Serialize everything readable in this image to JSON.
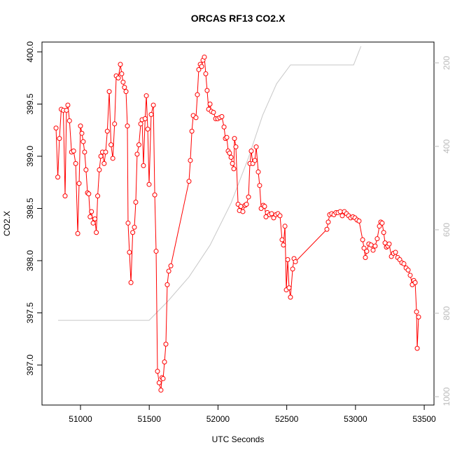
{
  "chart_data": {
    "type": "line",
    "title": "ORCAS RF13 CO2.X",
    "x_label": "UTC Seconds",
    "y_label": "CO2.X",
    "xlim": [
      50720,
      53571
    ],
    "xticks": [
      51000,
      51500,
      52000,
      52500,
      53000,
      53500
    ],
    "ylim": [
      396.617,
      400.094
    ],
    "yticks": [
      {
        "value": 397,
        "label": "397.0"
      },
      397.5,
      {
        "value": 398,
        "label": "398.0"
      },
      398.5,
      {
        "value": 399,
        "label": "399.0"
      },
      399.5,
      {
        "value": 400,
        "label": "400.0"
      }
    ],
    "y2lim": [
      1020,
      150
    ],
    "y2ticks": [
      200,
      400,
      600,
      800,
      1000
    ],
    "series": [
      {
        "color": "#ff0000",
        "markers": true,
        "x": [
          50822,
          50835,
          50847,
          50860,
          50875,
          50888,
          50898,
          50908,
          50920,
          50935,
          50950,
          50965,
          50980,
          50990,
          51000,
          51010,
          51020,
          51030,
          51040,
          51051,
          51060,
          51070,
          51080,
          51092,
          51105,
          51115,
          51125,
          51137,
          51148,
          51160,
          51172,
          51183,
          51195,
          51209,
          51222,
          51235,
          51248,
          51260,
          51275,
          51290,
          51300,
          51310,
          51320,
          51331,
          51341,
          51346,
          51356,
          51367,
          51380,
          51392,
          51402,
          51412,
          51425,
          51438,
          51448,
          51458,
          51470,
          51479,
          51489,
          51499,
          51514,
          51530,
          51540,
          51550,
          51560,
          51572,
          51585,
          51593,
          51601,
          51611,
          51621,
          51631,
          51642,
          51657,
          51789,
          51799,
          51810,
          51820,
          51840,
          51850,
          51860,
          51871,
          51881,
          51891,
          51901,
          51911,
          51921,
          51932,
          51942,
          51952,
          51967,
          51983,
          51998,
          52013,
          52028,
          52044,
          52054,
          52064,
          52074,
          52084,
          52095,
          52105,
          52115,
          52120,
          52130,
          52146,
          52156,
          52166,
          52181,
          52197,
          52207,
          52222,
          52232,
          52242,
          52253,
          52268,
          52278,
          52293,
          52303,
          52314,
          52329,
          52339,
          52349,
          52359,
          52375,
          52390,
          52405,
          52421,
          52436,
          52451,
          52466,
          52476,
          52487,
          52497,
          52507,
          52517,
          52527,
          52543,
          52553,
          52563,
          52792,
          52802,
          52812,
          52827,
          52843,
          52858,
          52873,
          52889,
          52904,
          52919,
          52935,
          52950,
          52965,
          52981,
          52996,
          53011,
          53026,
          53052,
          53062,
          53072,
          53082,
          53097,
          53113,
          53128,
          53143,
          53158,
          53174,
          53184,
          53194,
          53205,
          53215,
          53225,
          53235,
          53245,
          53261,
          53276,
          53291,
          53307,
          53322,
          53337,
          53352,
          53368,
          53383,
          53398,
          53413,
          53424,
          53434,
          53444,
          53449,
          53459
        ],
        "values": [
          399.27,
          398.8,
          399.17,
          399.45,
          399.44,
          398.62,
          399.44,
          399.49,
          399.34,
          399.04,
          399.05,
          398.93,
          398.26,
          398.74,
          399.29,
          399.22,
          399.14,
          399.04,
          398.87,
          398.65,
          398.64,
          398.42,
          398.47,
          398.36,
          398.4,
          398.27,
          398.62,
          398.87,
          399.0,
          399.04,
          398.93,
          399.04,
          399.24,
          399.62,
          399.11,
          398.98,
          399.31,
          399.77,
          399.75,
          399.88,
          399.79,
          399.71,
          399.66,
          399.62,
          399.29,
          398.36,
          398.08,
          397.79,
          398.27,
          398.32,
          398.56,
          399.02,
          399.11,
          399.31,
          399.35,
          398.91,
          399.36,
          399.58,
          399.26,
          398.73,
          399.4,
          399.49,
          398.63,
          398.09,
          396.94,
          396.83,
          396.76,
          396.88,
          396.87,
          397.03,
          397.2,
          397.77,
          397.9,
          397.95,
          398.76,
          398.96,
          399.24,
          399.39,
          399.37,
          399.59,
          399.83,
          399.88,
          399.86,
          399.92,
          399.95,
          399.79,
          399.63,
          399.45,
          399.5,
          399.43,
          399.42,
          399.36,
          399.36,
          399.37,
          399.38,
          399.28,
          399.17,
          399.18,
          399.05,
          399.03,
          398.99,
          398.93,
          398.88,
          399.17,
          399.09,
          398.54,
          398.48,
          398.52,
          398.47,
          398.53,
          398.54,
          398.61,
          398.93,
          399.05,
          398.93,
          398.96,
          399.09,
          398.85,
          398.72,
          398.5,
          398.53,
          398.52,
          398.42,
          398.46,
          398.44,
          398.45,
          398.41,
          398.44,
          398.45,
          398.43,
          398.2,
          398.15,
          398.33,
          397.72,
          398.01,
          397.74,
          397.65,
          397.92,
          398.02,
          397.99,
          398.3,
          398.37,
          398.44,
          398.45,
          398.44,
          398.46,
          398.46,
          398.47,
          398.43,
          398.47,
          398.45,
          398.43,
          398.41,
          398.42,
          398.41,
          398.39,
          398.38,
          398.2,
          398.12,
          398.03,
          398.09,
          398.16,
          398.15,
          398.1,
          398.14,
          398.21,
          398.33,
          398.37,
          398.36,
          398.27,
          398.17,
          398.13,
          398.14,
          398.16,
          398.04,
          398.07,
          398.08,
          398.03,
          398.01,
          397.98,
          397.97,
          397.93,
          397.91,
          397.86,
          397.77,
          397.81,
          397.79,
          397.51,
          397.16,
          397.46
        ]
      },
      {
        "color": "#c8c8c8",
        "axis": "y2",
        "markers": false,
        "x": [
          50837,
          51499,
          51636,
          51789,
          51942,
          52095,
          52222,
          52324,
          52426,
          52527,
          52986,
          53040
        ],
        "values": [
          817,
          817,
          771,
          713,
          637,
          536,
          427,
          326,
          250,
          205,
          205,
          160
        ]
      }
    ]
  }
}
